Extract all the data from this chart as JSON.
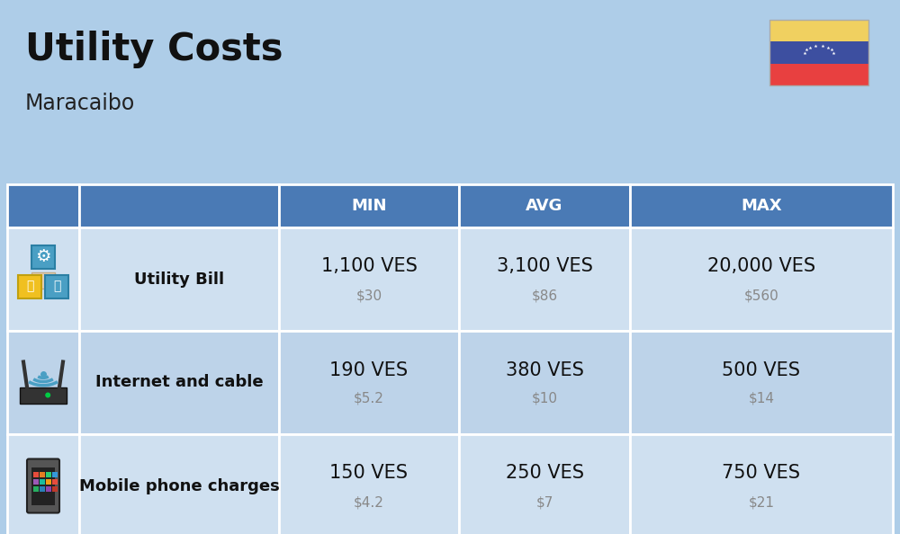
{
  "title": "Utility Costs",
  "subtitle": "Maracaibo",
  "background_color": "#aecde8",
  "header_bg_color": "#4a7ab5",
  "header_text_color": "#ffffff",
  "row_bg_color_1": "#cfe0f0",
  "row_bg_color_2": "#bdd3e9",
  "table_border_color": "#ffffff",
  "rows": [
    {
      "label": "Utility Bill",
      "min_ves": "1,100 VES",
      "min_usd": "$30",
      "avg_ves": "3,100 VES",
      "avg_usd": "$86",
      "max_ves": "20,000 VES",
      "max_usd": "$560"
    },
    {
      "label": "Internet and cable",
      "min_ves": "190 VES",
      "min_usd": "$5.2",
      "avg_ves": "380 VES",
      "avg_usd": "$10",
      "max_ves": "500 VES",
      "max_usd": "$14"
    },
    {
      "label": "Mobile phone charges",
      "min_ves": "150 VES",
      "min_usd": "$4.2",
      "avg_ves": "250 VES",
      "avg_usd": "$7",
      "max_ves": "750 VES",
      "max_usd": "$21"
    }
  ],
  "col_headers": [
    "",
    "",
    "MIN",
    "AVG",
    "MAX"
  ],
  "flag_yellow": "#f0d060",
  "flag_blue": "#3d4fa0",
  "flag_red": "#e84040",
  "title_fontsize": 30,
  "subtitle_fontsize": 17,
  "header_fontsize": 13,
  "row_label_fontsize": 13,
  "value_fontsize": 15,
  "usd_fontsize": 11
}
